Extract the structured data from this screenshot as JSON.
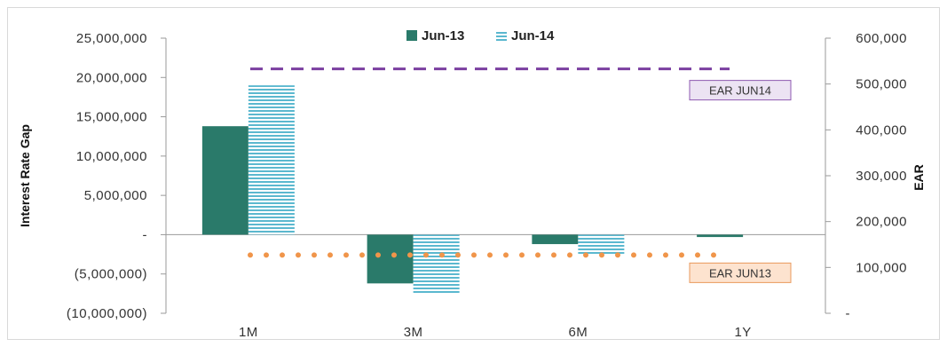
{
  "chart_data": {
    "type": "bar",
    "categories": [
      "1M",
      "3M",
      "6M",
      "1Y"
    ],
    "series": [
      {
        "name": "Jun-13",
        "values": [
          13800000,
          -6200000,
          -1200000,
          -300000
        ],
        "color": "#2a7a6a",
        "pattern": "solid"
      },
      {
        "name": "Jun-14",
        "values": [
          19000000,
          -7500000,
          -2600000,
          0
        ],
        "color": "#5bb8cf",
        "pattern": "horizontal-stripes"
      }
    ],
    "y_left": {
      "label": "Interest Rate Gap",
      "min": -10000000,
      "max": 25000000,
      "step": 5000000,
      "tick_labels": [
        "(10,000,000)",
        "(5,000,000)",
        "-",
        "5,000,000",
        "10,000,000",
        "15,000,000",
        "20,000,000",
        "25,000,000"
      ]
    },
    "y_right": {
      "label": "EAR",
      "min": 0,
      "max": 600000,
      "step": 100000,
      "tick_labels": [
        "-",
        "100,000",
        "200,000",
        "300,000",
        "400,000",
        "500,000",
        "600,000"
      ]
    },
    "reference_lines": [
      {
        "label": "EAR JUN14",
        "value": 533000,
        "axis": "right",
        "style": "dashed",
        "color": "#7b3fa0",
        "label_bg": "#ece3f3",
        "label_border": "#8e5ab0"
      },
      {
        "label": "EAR JUN13",
        "value": 127000,
        "axis": "right",
        "style": "dotted",
        "color": "#f0954a",
        "label_bg": "#fde3cf",
        "label_border": "#e99a5c"
      }
    ],
    "legend": {
      "position": "top-center"
    },
    "grid": false
  }
}
